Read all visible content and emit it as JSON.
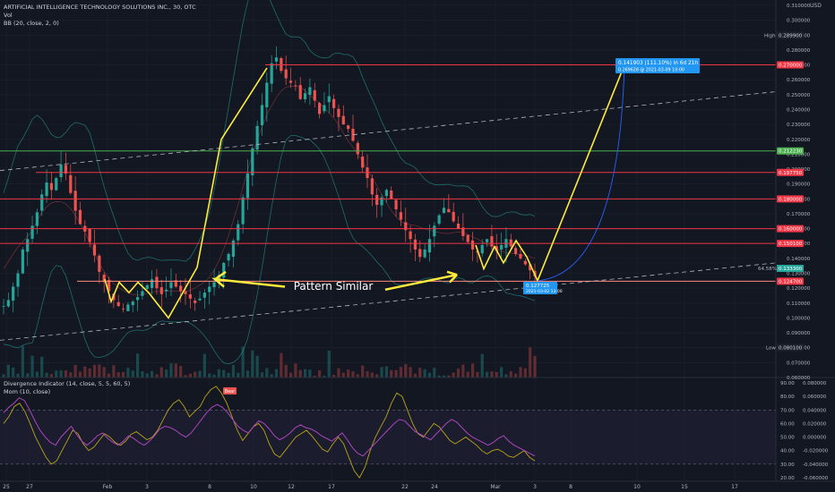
{
  "header": {
    "symbol_title": "ARTIFICIAL INTELLIGENCE TECHNOLOGY SOLUTIONS INC., 30, OTC",
    "vol_label": "Vol",
    "bb_label": "BB (20, close, 2, 0)",
    "currency": "USD"
  },
  "colors": {
    "background": "#131722",
    "up_candle": "#26a69a",
    "down_candle": "#ef5350",
    "bb_band": "#26a69a",
    "pattern_lines": "#ffeb3b",
    "resistance_lines": "#f23645",
    "support_line": "#4caf50",
    "divergence_line": "#ab47bc",
    "momentum_line": "#b8a41a",
    "forecast_label_bg": "#2196f3",
    "price_label_bg": "#e91e63"
  },
  "price_axis": {
    "ticks": [
      "0.310000",
      "0.300000",
      "0.290000",
      "0.280000",
      "0.270000",
      "0.260000",
      "0.250000",
      "0.240000",
      "0.230000",
      "0.220000",
      "0.210000",
      "0.200000",
      "0.190000",
      "0.180000",
      "0.170000",
      "0.160000",
      "0.150000",
      "0.140000",
      "0.130000",
      "0.120000",
      "0.110000",
      "0.100000",
      "0.090000",
      "0.080000",
      "0.070000",
      "0.060000"
    ]
  },
  "price_labels": {
    "high_tag": "High",
    "high_value": "0.289900",
    "low_tag": "Low",
    "low_value": "0.080100",
    "current_pct": "64.58%",
    "current_value": "0.133300",
    "level_270": "0.270000",
    "level_2122": "0.212230",
    "level_1977": "0.197750",
    "level_180": "0.180000",
    "level_160": "0.160000",
    "level_150": "0.150100",
    "level_1247": "0.124700"
  },
  "time_axis": {
    "labels": [
      "25",
      "27",
      "Feb",
      "3",
      "8",
      "10",
      "12",
      "17",
      "22",
      "24",
      "Mar",
      "3",
      "8",
      "10",
      "15",
      "17"
    ]
  },
  "annotations": {
    "pattern_text": "Pattern Similar",
    "bear_label": "Bear",
    "low_point_value": "0.127725",
    "low_point_date": "2021-03-02 13:00",
    "forecast_line1": "0.141903 (111.10%) in 6d 21h",
    "forecast_line2": "0.269628 @ 2021-03-09  10:00"
  },
  "indicators": {
    "divergence_label": "Divergence Indicator (14, close, 5, 5, 60, 5)",
    "mom_label": "Mom (10, close)",
    "rsi_ticks": [
      "90.00",
      "80.00",
      "70.00",
      "60.00",
      "50.00",
      "40.00",
      "30.00",
      "20.00"
    ],
    "mom_ticks": [
      "0.080000",
      "0.060000",
      "0.040000",
      "0.020000",
      "0.000000",
      "-0.020000",
      "-0.040000",
      "-0.060000"
    ]
  },
  "chart_data": [
    {
      "type": "line",
      "title": "ARTIFICIAL INTELLIGENCE TECHNOLOGY SOLUTIONS INC., 30, OTC",
      "series": [
        {
          "values": [
            0.108,
            0.112,
            0.121,
            0.13,
            0.146,
            0.153,
            0.162,
            0.171,
            0.183,
            0.191,
            0.186,
            0.194,
            0.203,
            0.197,
            0.184,
            0.172,
            0.163,
            0.158,
            0.151,
            0.142,
            0.131,
            0.124,
            0.118,
            0.112,
            0.108,
            0.106,
            0.109,
            0.111,
            0.114,
            0.118,
            0.122,
            0.126,
            0.12,
            0.116,
            0.119,
            0.124,
            0.121,
            0.118,
            0.116,
            0.113,
            0.11,
            0.113,
            0.117,
            0.121,
            0.124,
            0.129,
            0.137,
            0.143,
            0.152,
            0.163,
            0.181,
            0.197,
            0.214,
            0.229,
            0.243,
            0.258,
            0.271,
            0.275,
            0.266,
            0.261,
            0.258,
            0.256,
            0.247,
            0.251,
            0.255,
            0.246,
            0.237,
            0.243,
            0.249,
            0.241,
            0.235,
            0.23,
            0.227,
            0.219,
            0.21,
            0.201,
            0.194,
            0.183,
            0.176,
            0.181,
            0.186,
            0.18,
            0.173,
            0.166,
            0.159,
            0.153,
            0.146,
            0.141,
            0.146,
            0.153,
            0.162,
            0.169,
            0.174,
            0.171,
            0.165,
            0.16,
            0.155,
            0.151,
            0.146,
            0.144,
            0.149,
            0.153,
            0.148,
            0.145,
            0.149,
            0.153,
            0.148,
            0.143,
            0.14,
            0.136,
            0.132,
            0.128
          ]
        }
      ],
      "ylim": [
        0.06,
        0.31
      ],
      "grid": true
    },
    {
      "type": "line",
      "title": "Divergence Indicator (14, close, 5, 5, 60, 5)",
      "series": [
        {
          "values": [
            68,
            72,
            75,
            79,
            77,
            70,
            62,
            55,
            50,
            46,
            44,
            50,
            54,
            58,
            52,
            47,
            44,
            47,
            51,
            53,
            49,
            46,
            44,
            47,
            51,
            49,
            46,
            44,
            47,
            51,
            56,
            58,
            57,
            55,
            52,
            50,
            53,
            58,
            63,
            68,
            72,
            74,
            72,
            68,
            63,
            58,
            55,
            53,
            58,
            62,
            60,
            56,
            51,
            48,
            50,
            53,
            57,
            59,
            57,
            56,
            54,
            51,
            49,
            47,
            50,
            53,
            48,
            42,
            38,
            36,
            40,
            44,
            48,
            52,
            56,
            60,
            63,
            62,
            58,
            54,
            52,
            50,
            48,
            52,
            56,
            60,
            63,
            61,
            57,
            53,
            50,
            48,
            46,
            44,
            46,
            49,
            51,
            47,
            44,
            42,
            40,
            38,
            36
          ]
        }
      ],
      "ylim": [
        20,
        90
      ]
    },
    {
      "type": "line",
      "title": "Mom (10, close)",
      "series": [
        {
          "values": [
            0.02,
            0.03,
            0.045,
            0.05,
            0.038,
            0.02,
            0.0,
            -0.015,
            -0.03,
            -0.04,
            -0.035,
            -0.02,
            -0.005,
            0.01,
            0.005,
            -0.01,
            -0.02,
            -0.015,
            -0.005,
            0.005,
            0.0,
            -0.008,
            -0.012,
            -0.006,
            0.004,
            0.008,
            0.002,
            -0.004,
            0.0,
            0.01,
            0.025,
            0.04,
            0.05,
            0.055,
            0.045,
            0.03,
            0.038,
            0.045,
            0.06,
            0.07,
            0.075,
            0.065,
            0.05,
            0.03,
            0.01,
            -0.005,
            0.005,
            0.015,
            0.02,
            0.01,
            -0.01,
            -0.025,
            -0.03,
            -0.02,
            -0.01,
            0.0,
            0.005,
            0.01,
            0.002,
            -0.008,
            -0.018,
            -0.022,
            -0.01,
            0.0,
            -0.01,
            -0.03,
            -0.05,
            -0.06,
            -0.045,
            -0.02,
            0.0,
            0.015,
            0.03,
            0.05,
            0.065,
            0.06,
            0.04,
            0.02,
            0.005,
            0.0,
            0.01,
            0.02,
            0.015,
            0.005,
            -0.005,
            -0.01,
            -0.005,
            0.0,
            -0.006,
            -0.012,
            -0.02,
            -0.025,
            -0.02,
            -0.018,
            -0.022,
            -0.028,
            -0.03,
            -0.025,
            -0.02,
            -0.03,
            -0.035
          ]
        }
      ],
      "ylim": [
        -0.06,
        0.08
      ]
    }
  ]
}
